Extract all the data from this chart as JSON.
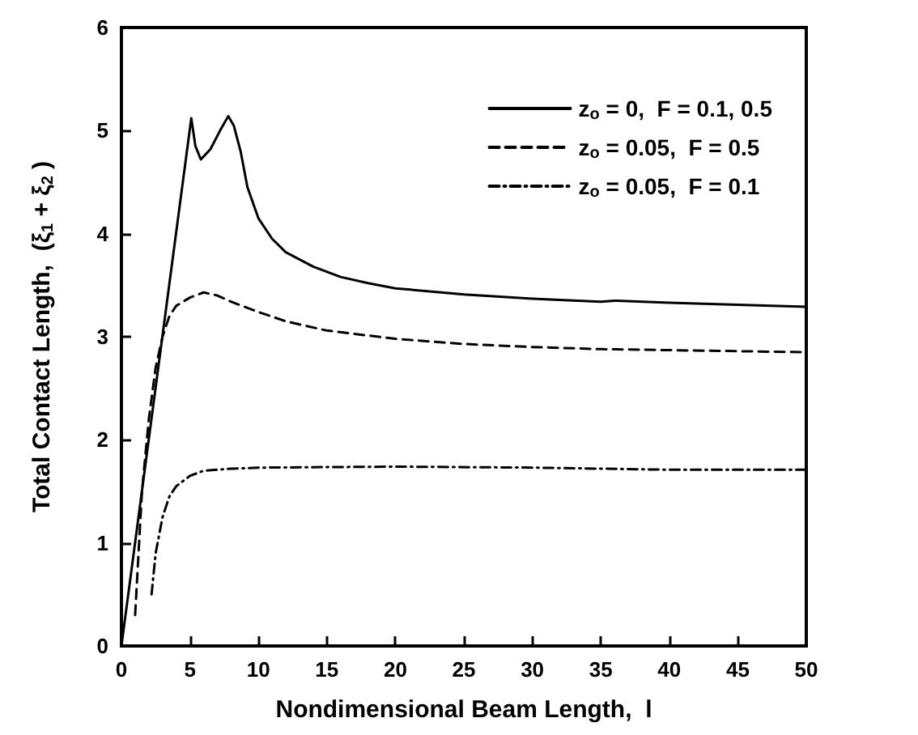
{
  "chart_data": {
    "type": "line",
    "xlabel": "Nondimensional Beam Length,  l",
    "ylabel": "Total Contact Length,  (ξ$_{1}$ + ξ$_{2}$ )",
    "xlim": [
      0,
      50
    ],
    "xticks": [
      0,
      5,
      10,
      15,
      20,
      25,
      30,
      35,
      40,
      45,
      50
    ],
    "ylim": [
      0,
      6
    ],
    "yticks": [
      0,
      1,
      2,
      3,
      4,
      5,
      6
    ],
    "grid": false,
    "legend": "top right",
    "marker": "none",
    "series": [
      {
        "name": "z$_{o}$ = 0,  F = 0.1, 0.5",
        "color": "#000000",
        "line_style": "solid",
        "x": [
          0,
          5.1,
          5.4,
          5.8,
          6.5,
          7.2,
          7.8,
          8.2,
          8.7,
          9.2,
          10,
          11,
          12,
          14,
          16,
          18,
          20,
          25,
          30,
          35,
          36,
          40,
          45,
          50
        ],
        "values": [
          0,
          5.12,
          4.85,
          4.72,
          4.82,
          5.0,
          5.14,
          5.05,
          4.8,
          4.45,
          4.15,
          3.95,
          3.82,
          3.68,
          3.58,
          3.52,
          3.47,
          3.41,
          3.37,
          3.34,
          3.35,
          3.33,
          3.31,
          3.29
        ]
      },
      {
        "name": "z$_{o}$ = 0.05,  F = 0.5",
        "color": "#000000",
        "line_style": "dashed",
        "x": [
          1,
          1.5,
          2,
          2.5,
          3,
          3.5,
          4,
          5,
          6,
          7,
          8,
          10,
          12,
          15,
          20,
          25,
          30,
          35,
          40,
          45,
          50
        ],
        "values": [
          0.3,
          1.5,
          2.2,
          2.7,
          3.0,
          3.2,
          3.3,
          3.38,
          3.43,
          3.4,
          3.34,
          3.24,
          3.15,
          3.06,
          2.98,
          2.93,
          2.9,
          2.88,
          2.87,
          2.86,
          2.85
        ]
      },
      {
        "name": "z$_{o}$ = 0.05,  F = 0.1",
        "color": "#000000",
        "line_style": "dashdot",
        "x": [
          2.2,
          2.5,
          3,
          3.5,
          4,
          5,
          6,
          8,
          10,
          20,
          30,
          40,
          50
        ],
        "values": [
          0.5,
          0.9,
          1.25,
          1.45,
          1.55,
          1.65,
          1.7,
          1.72,
          1.73,
          1.74,
          1.73,
          1.71,
          1.71
        ]
      }
    ]
  }
}
